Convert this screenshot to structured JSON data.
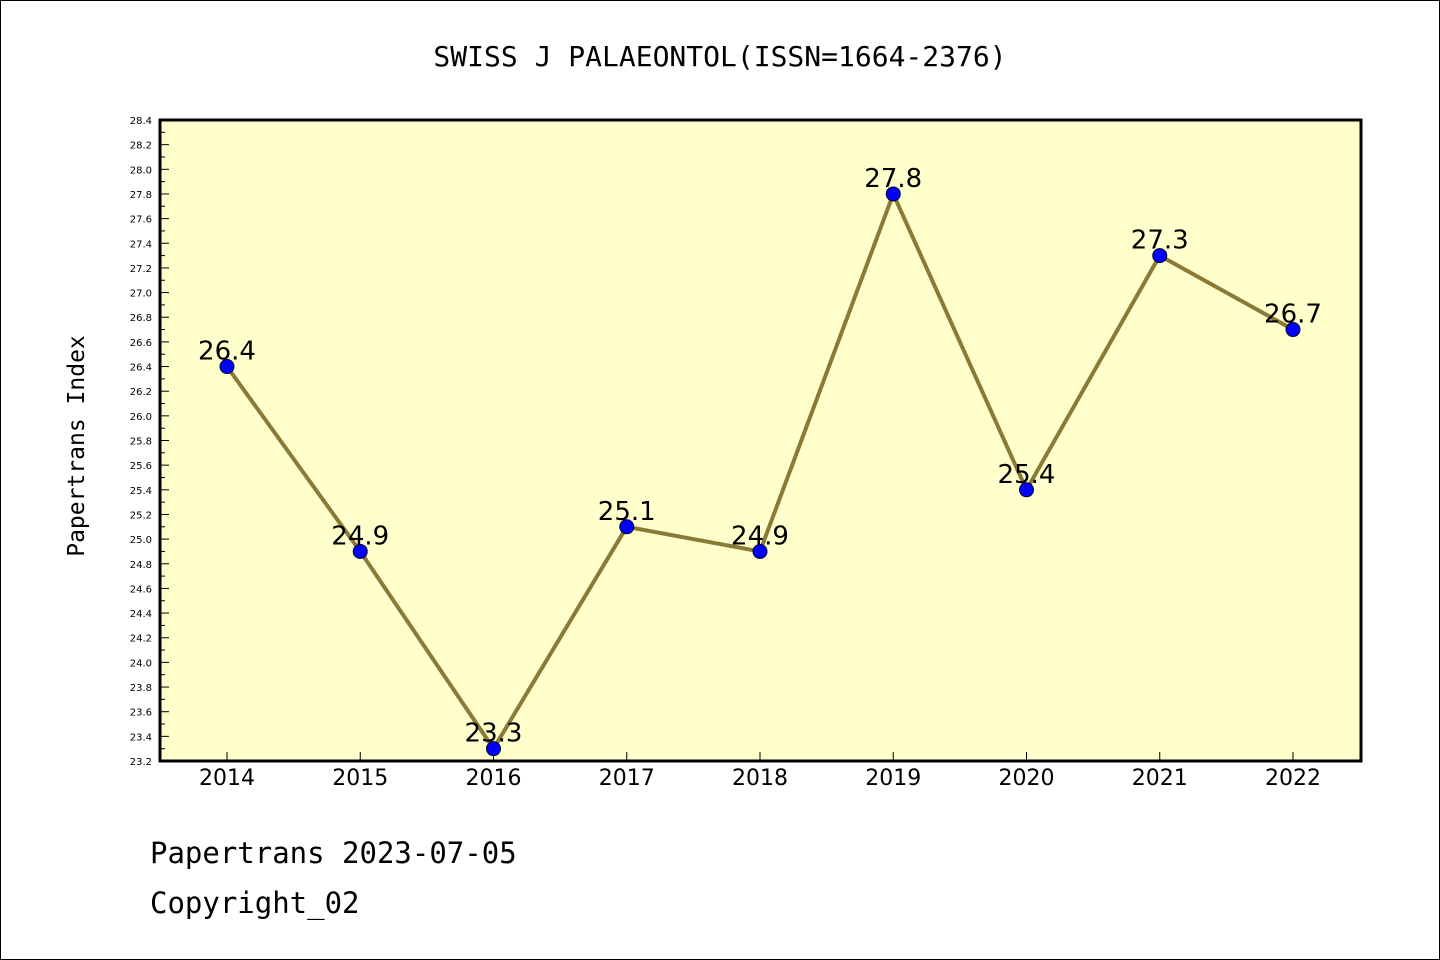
{
  "chart_data": {
    "type": "line",
    "title": "SWISS J PALAEONTOL(ISSN=1664-2376)",
    "xlabel": "",
    "ylabel": "Papertrans Index",
    "categories": [
      "2014",
      "2015",
      "2016",
      "2017",
      "2018",
      "2019",
      "2020",
      "2021",
      "2022"
    ],
    "series": [
      {
        "values": [
          26.4,
          24.9,
          23.3,
          25.1,
          24.9,
          27.8,
          25.4,
          27.3,
          26.7
        ],
        "labels": [
          "26.4",
          "24.9",
          "23.3",
          "25.1",
          "24.9",
          "27.8",
          "25.4",
          "27.3",
          "26.7"
        ]
      }
    ],
    "ylim": [
      23.2,
      28.4
    ],
    "y_major_ticks": [
      "23.2",
      "23.4",
      "23.6",
      "23.8",
      "24.0",
      "24.2",
      "24.4",
      "24.6",
      "24.8",
      "25.0",
      "25.2",
      "25.4",
      "25.6",
      "25.8",
      "26.0",
      "26.2",
      "26.4",
      "26.6",
      "26.8",
      "27.0",
      "27.2",
      "27.4",
      "27.6",
      "27.8",
      "28.0",
      "28.2",
      "28.4"
    ],
    "y_minor_tick_step": 0.1,
    "grid": false,
    "legend": "none",
    "colors": {
      "plot_background": "#ffffcc",
      "line": "#8b7a36",
      "marker": "#0000ff",
      "axis": "#000000"
    }
  },
  "footer": {
    "line1": "Papertrans 2023-07-05",
    "line2": "Copyright_02"
  }
}
